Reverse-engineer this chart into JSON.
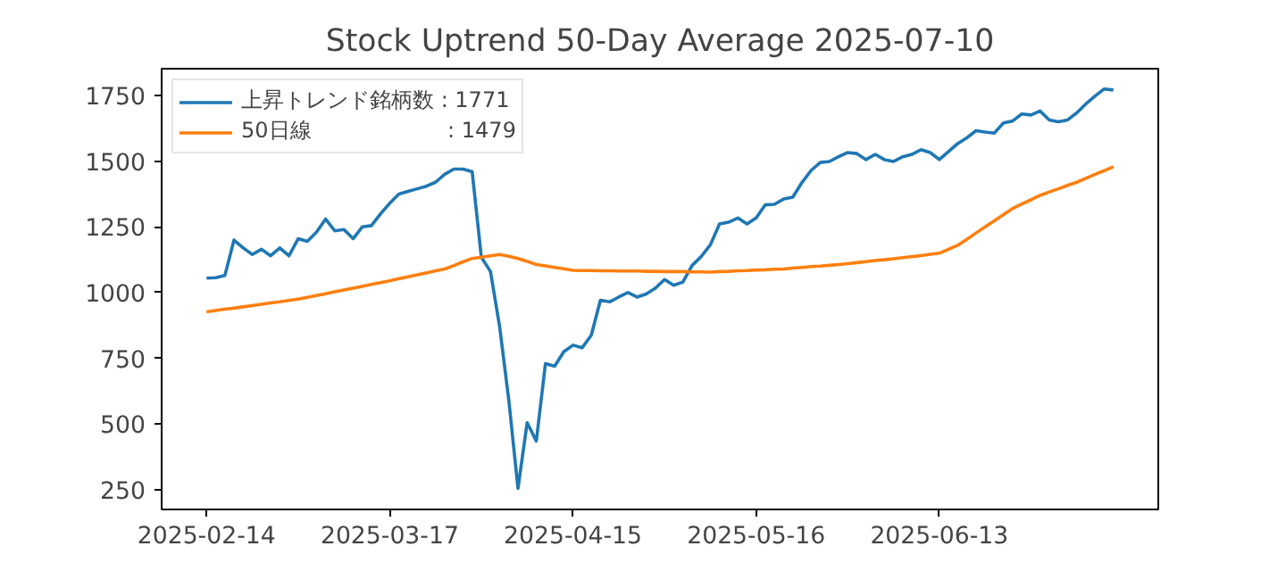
{
  "chart_data": {
    "type": "line",
    "title": "Stock Uptrend 50-Day Average 2025-07-10",
    "categories": [
      "2025-02-14",
      null,
      null,
      null,
      null,
      null,
      null,
      null,
      null,
      null,
      null,
      null,
      null,
      null,
      null,
      null,
      null,
      null,
      null,
      null,
      "2025-03-17",
      null,
      null,
      null,
      null,
      null,
      null,
      null,
      null,
      null,
      null,
      null,
      null,
      null,
      null,
      null,
      null,
      null,
      null,
      null,
      "2025-04-15",
      null,
      null,
      null,
      null,
      null,
      null,
      null,
      null,
      null,
      null,
      null,
      null,
      null,
      null,
      null,
      null,
      null,
      null,
      null,
      "2025-05-16",
      null,
      null,
      null,
      null,
      null,
      null,
      null,
      null,
      null,
      null,
      null,
      null,
      null,
      null,
      null,
      null,
      null,
      null,
      null,
      "2025-06-13",
      null,
      null,
      null,
      null,
      null,
      null,
      null,
      null,
      null,
      null,
      null,
      null,
      null,
      null,
      null,
      null,
      null,
      null,
      null
    ],
    "series": [
      {
        "name": "上昇トレンド銘柄数 : 1771",
        "color": "#1f77b4",
        "values": [
          1055,
          1057,
          1065,
          1200,
          1170,
          1145,
          1165,
          1140,
          1170,
          1140,
          1205,
          1195,
          1230,
          1280,
          1235,
          1240,
          1205,
          1250,
          1255,
          1300,
          1340,
          1375,
          1385,
          1395,
          1405,
          1420,
          1450,
          1470,
          1470,
          1460,
          1135,
          1080,
          870,
          590,
          255,
          505,
          435,
          730,
          720,
          775,
          800,
          790,
          838,
          971,
          965,
          983,
          1000,
          983,
          995,
          1017,
          1050,
          1028,
          1040,
          1103,
          1137,
          1182,
          1261,
          1268,
          1284,
          1261,
          1284,
          1334,
          1336,
          1356,
          1363,
          1419,
          1465,
          1495,
          1499,
          1517,
          1533,
          1529,
          1506,
          1526,
          1506,
          1499,
          1517,
          1526,
          1544,
          1533,
          1506,
          1537,
          1567,
          1589,
          1616,
          1611,
          1607,
          1646,
          1653,
          1680,
          1676,
          1691,
          1657,
          1650,
          1657,
          1684,
          1718,
          1748,
          1775,
          1771
        ]
      },
      {
        "name": "50日線                    : 1479",
        "color": "#ff7f0e",
        "values": [
          927,
          932,
          937,
          941,
          946,
          951,
          956,
          961,
          965,
          970,
          975,
          982,
          989,
          996,
          1003,
          1010,
          1017,
          1024,
          1031,
          1038,
          1045,
          1053,
          1060,
          1068,
          1075,
          1083,
          1090,
          1103,
          1117,
          1130,
          1135,
          1140,
          1145,
          1138,
          1130,
          1119,
          1107,
          1102,
          1096,
          1091,
          1085,
          1084,
          1084,
          1083,
          1083,
          1082,
          1082,
          1082,
          1081,
          1081,
          1080,
          1080,
          1080,
          1079,
          1079,
          1078,
          1080,
          1081,
          1083,
          1084,
          1086,
          1087,
          1089,
          1090,
          1093,
          1096,
          1099,
          1101,
          1104,
          1107,
          1110,
          1114,
          1118,
          1122,
          1125,
          1129,
          1133,
          1137,
          1141,
          1146,
          1150,
          1165,
          1180,
          1203,
          1227,
          1250,
          1273,
          1297,
          1320,
          1337,
          1353,
          1370,
          1383,
          1395,
          1408,
          1420,
          1435,
          1450,
          1464,
          1479
        ]
      }
    ],
    "ylim": [
      175,
      1852
    ],
    "yticks": [
      250,
      500,
      750,
      1000,
      1250,
      1500,
      1750
    ],
    "grid": false,
    "legend": "top left",
    "marker": "none",
    "line_style": "solid"
  }
}
